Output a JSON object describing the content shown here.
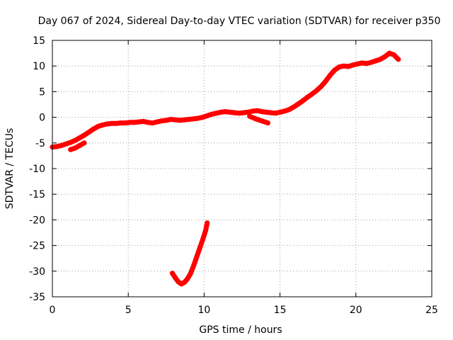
{
  "chart_data": {
    "type": "scatter",
    "title": "Day 067 of 2024, Sidereal Day-to-day VTEC variation (SDTVAR) for receiver p350",
    "xlabel": "GPS time / hours",
    "ylabel": "SDTVAR / TECUs",
    "xlim": [
      0,
      25
    ],
    "ylim": [
      -35,
      15
    ],
    "x_ticks": [
      "0",
      "5",
      "10",
      "15",
      "20",
      "25"
    ],
    "y_ticks": [
      "15",
      "10",
      "5",
      "0",
      "-5",
      "-10",
      "-15",
      "-20",
      "-25",
      "-30",
      "-35"
    ],
    "grid": true,
    "color": "#ff0000",
    "series": [
      {
        "x": [
          0.0,
          0.3,
          0.6,
          0.9,
          1.2,
          1.5,
          1.8,
          2.1,
          2.4,
          2.7,
          3.0,
          3.3,
          3.6,
          3.9,
          4.2,
          4.5,
          4.8,
          5.1,
          5.4,
          5.7,
          6.0,
          6.3,
          6.6,
          6.9,
          7.2,
          7.5,
          7.8,
          8.1,
          8.4,
          8.7,
          9.0,
          9.3,
          9.6,
          9.9,
          10.2,
          10.5,
          10.8,
          11.1,
          11.4,
          11.7,
          12.0,
          12.3,
          12.6,
          12.9,
          13.2,
          13.5,
          13.8,
          14.1,
          14.4,
          14.7,
          15.0,
          15.3,
          15.6,
          15.9,
          16.2,
          16.5,
          16.8,
          17.1,
          17.4,
          17.7,
          18.0,
          18.3,
          18.6,
          18.9,
          19.2,
          19.5,
          19.8,
          20.1,
          20.4,
          20.7,
          21.0,
          21.3,
          21.6,
          21.9,
          22.2,
          22.5,
          22.8
        ],
        "y": [
          -5.8,
          -5.7,
          -5.5,
          -5.2,
          -4.9,
          -4.5,
          -4.0,
          -3.5,
          -2.9,
          -2.3,
          -1.8,
          -1.5,
          -1.3,
          -1.2,
          -1.2,
          -1.1,
          -1.1,
          -1.0,
          -1.0,
          -0.9,
          -0.8,
          -1.0,
          -1.1,
          -0.9,
          -0.7,
          -0.6,
          -0.4,
          -0.5,
          -0.6,
          -0.5,
          -0.4,
          -0.3,
          -0.2,
          0.0,
          0.3,
          0.6,
          0.8,
          1.0,
          1.1,
          1.0,
          0.9,
          0.8,
          0.9,
          1.0,
          1.2,
          1.3,
          1.1,
          1.0,
          0.9,
          0.8,
          1.0,
          1.2,
          1.5,
          2.0,
          2.6,
          3.2,
          3.9,
          4.5,
          5.2,
          6.0,
          7.0,
          8.2,
          9.2,
          9.8,
          10.0,
          9.9,
          10.2,
          10.4,
          10.6,
          10.5,
          10.7,
          11.0,
          11.3,
          11.8,
          12.5,
          12.2,
          11.3
        ]
      },
      {
        "x": [
          13.0,
          13.4,
          13.8,
          14.2
        ],
        "y": [
          0.2,
          -0.3,
          -0.7,
          -1.1
        ]
      },
      {
        "x": [
          1.2,
          1.5,
          1.8,
          2.1
        ],
        "y": [
          -6.3,
          -6.0,
          -5.5,
          -5.0
        ]
      },
      {
        "x": [
          7.9,
          8.1,
          8.3,
          8.5,
          8.7,
          8.9,
          9.1,
          9.3,
          9.5,
          9.7,
          9.9,
          10.1,
          10.2
        ],
        "y": [
          -30.4,
          -31.3,
          -32.1,
          -32.5,
          -32.2,
          -31.5,
          -30.5,
          -29.0,
          -27.3,
          -25.6,
          -23.9,
          -22.1,
          -20.6
        ]
      }
    ]
  }
}
